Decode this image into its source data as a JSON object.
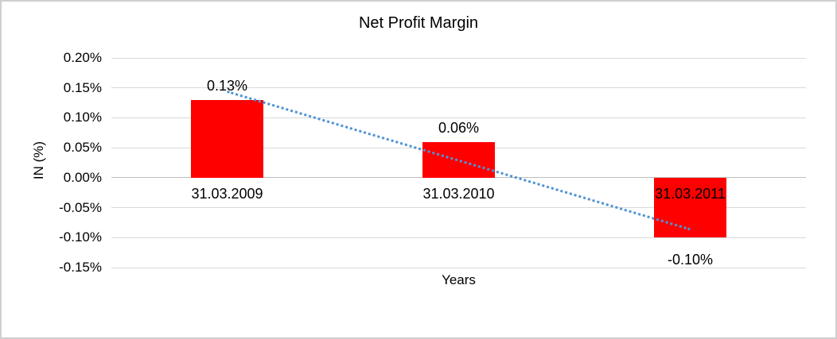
{
  "window": {
    "background": "#ffffff",
    "border_color": "#cfcfcf"
  },
  "chart_data": {
    "type": "bar",
    "title": "Net Profit Margin",
    "xlabel": "Years",
    "ylabel": "IN (%)",
    "categories": [
      "31.03.2009",
      "31.03.2010",
      "31.03.2011"
    ],
    "values": [
      0.13,
      0.06,
      -0.1
    ],
    "bar_labels": [
      "0.13%",
      "0.06%",
      "-0.10%"
    ],
    "bar_color": "#ff0000",
    "ylim": [
      -0.15,
      0.2
    ],
    "ytick_step": 0.05,
    "yticks": [
      {
        "value": 0.2,
        "label": "0.20%"
      },
      {
        "value": 0.15,
        "label": "0.15%"
      },
      {
        "value": 0.1,
        "label": "0.10%"
      },
      {
        "value": 0.05,
        "label": "0.05%"
      },
      {
        "value": 0.0,
        "label": "0.00%"
      },
      {
        "value": -0.05,
        "label": "-0.05%"
      },
      {
        "value": -0.1,
        "label": "-0.10%"
      },
      {
        "value": -0.15,
        "label": "-0.15%"
      }
    ],
    "grid": true,
    "gridline_color": "#d9d9d9",
    "axis_line_color": "#bfbfbf",
    "legend": "none",
    "trendline": {
      "type": "linear",
      "style": "dotted",
      "color": "#4f93d5",
      "start_value": 0.145,
      "end_value": -0.085
    }
  }
}
